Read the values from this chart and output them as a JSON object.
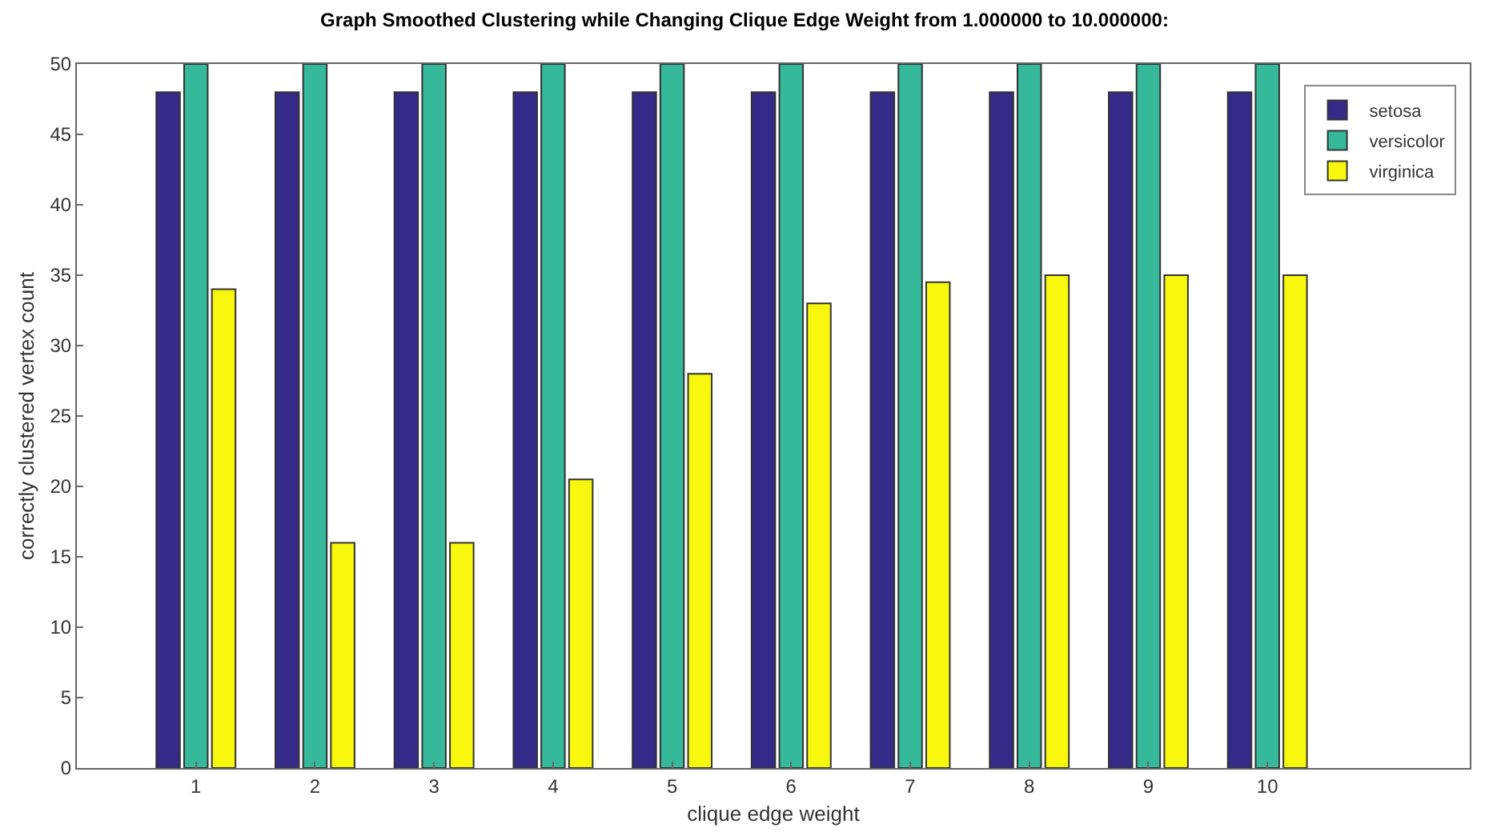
{
  "chart_data": {
    "type": "bar",
    "title": "Graph Smoothed Clustering while Changing Clique Edge Weight from 1.000000 to 10.000000:",
    "xlabel": "clique edge weight",
    "ylabel": "correctly clustered vertex count",
    "x": [
      1,
      2,
      3,
      4,
      5,
      6,
      7,
      8,
      9,
      10
    ],
    "series": [
      {
        "name": "setosa",
        "color": "#352a87",
        "values": [
          48,
          48,
          48,
          48,
          48,
          48,
          48,
          48,
          48,
          48
        ]
      },
      {
        "name": "versicolor",
        "color": "#36b89a",
        "values": [
          50,
          50,
          50,
          50,
          50,
          50,
          50,
          50,
          50,
          50
        ]
      },
      {
        "name": "virginica",
        "color": "#f8f80e",
        "values": [
          34,
          16,
          16,
          20.5,
          28,
          33,
          34.5,
          35,
          35,
          35
        ]
      }
    ],
    "xlim": [
      0,
      11.7
    ],
    "xticks": [
      1,
      2,
      3,
      4,
      5,
      6,
      7,
      8,
      9,
      10
    ],
    "ylim": [
      0,
      50
    ],
    "yticks": [
      0,
      5,
      10,
      15,
      20,
      25,
      30,
      35,
      40,
      45,
      50
    ],
    "grid": false,
    "legend": "top right"
  }
}
